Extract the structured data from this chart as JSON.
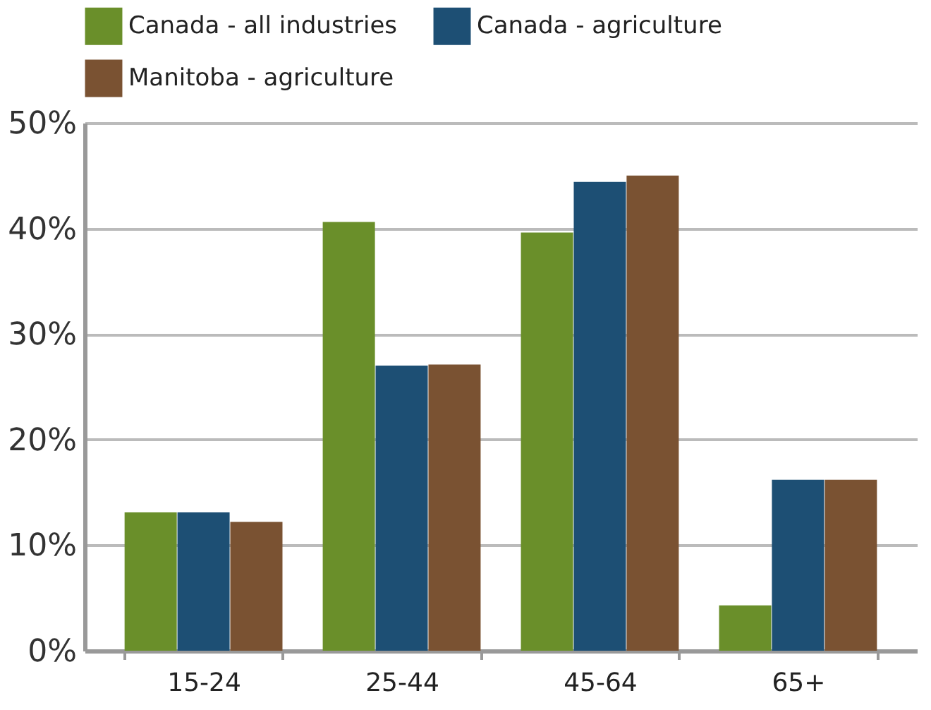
{
  "chart_data": {
    "type": "bar",
    "categories": [
      "15-24",
      "25-44",
      "45-64",
      "65+"
    ],
    "series": [
      {
        "name": "Canada - all industries",
        "color": "#6a8f2a",
        "values": [
          13.1,
          40.6,
          39.6,
          4.3
        ]
      },
      {
        "name": "Canada - agriculture",
        "color": "#1d4f74",
        "values": [
          13.1,
          27.0,
          44.4,
          16.2
        ]
      },
      {
        "name": "Manitoba - agriculture",
        "color": "#7a5232",
        "values": [
          12.2,
          27.1,
          45.0,
          16.2
        ]
      }
    ],
    "ylim": [
      0,
      50
    ],
    "yticks": [
      {
        "value": 0,
        "label": "0%"
      },
      {
        "value": 10,
        "label": "10%"
      },
      {
        "value": 20,
        "label": "20%"
      },
      {
        "value": 30,
        "label": "30%"
      },
      {
        "value": 40,
        "label": "40%"
      },
      {
        "value": 50,
        "label": "50%"
      }
    ],
    "grid": "y",
    "legend": "top"
  }
}
